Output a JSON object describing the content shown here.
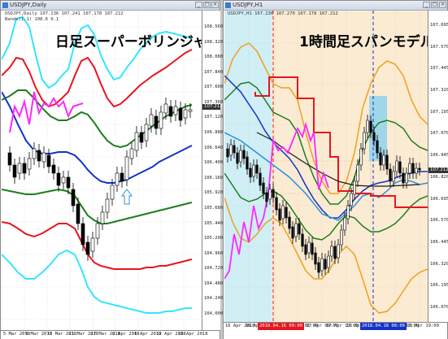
{
  "left_window": {
    "title": "USDJPY,Daily",
    "overlay_title": "日足スーパーボリンジャー",
    "info_line": "USDJPY,Daily  107.136 107.241 107.178 107.212",
    "indicator_line": "Bands(1.1) 108.6 0.1",
    "price_labels": [
      "108.560",
      "108.320",
      "108.080",
      "107.840",
      "107.600",
      "107.360",
      "107.120",
      "106.880",
      "106.640",
      "106.400",
      "106.160",
      "105.920",
      "105.680",
      "105.440",
      "105.200",
      "104.960",
      "104.720",
      "104.480",
      "104.240",
      "104.000"
    ],
    "current_price": "107.212",
    "time_labels": [
      "5 Mar 2018",
      "9 Mar 2018",
      "15 Mar 2018",
      "21 Mar 2018",
      "27 Mar 2018",
      "2 Apr 2018",
      "6 Apr 2018",
      "12 Apr 2018",
      "18 Apr 2018"
    ],
    "arrow_icon": "up-arrow-icon"
  },
  "right_window": {
    "title": "USDJPY,H1",
    "overlay_title": "1時間足スパンモデル",
    "info_line": "USDJPY,H1  107.236 107.270 107.178 107.212",
    "price_labels": [
      "107.695",
      "107.570",
      "107.445",
      "107.320",
      "107.195",
      "107.070",
      "106.945",
      "106.820",
      "106.695",
      "106.570",
      "106.445",
      "106.320",
      "106.195",
      "106.070"
    ],
    "current_price": "107.212",
    "time_labels": [
      "16 Apr 2018",
      "16 Apr 09:00",
      "16 Apr 17:00",
      "17 Apr 01:00",
      "17 Apr 09:00",
      "17 Apr 17:00",
      "18 Apr 01:00",
      "18 Apr 09:00",
      "18 Apr 17:00",
      "18 Apr 19:00"
    ],
    "tag_red": "2018.04.16 09:00",
    "tag_blue": "2018.04.18 08:00"
  },
  "colors": {
    "red": "#e8141e",
    "cyan": "#33e6ff",
    "green": "#1e7d1e",
    "blue": "#1232c8",
    "magenta": "#ff28ff",
    "orange": "#f0a020",
    "span_blue_bg": "#cfeef6",
    "span_orange_bg": "#fbebd2"
  }
}
